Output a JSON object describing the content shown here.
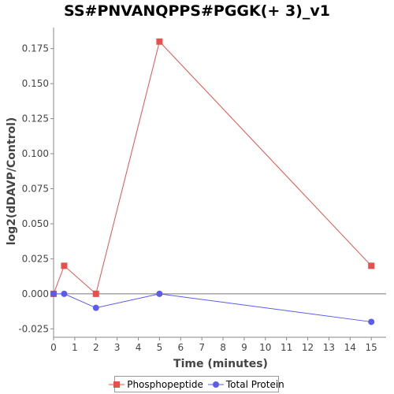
{
  "chart_data": {
    "type": "line",
    "title": "SS#PNVANQPPS#PGGK(+ 3)_v1",
    "xlabel": "Time (minutes)",
    "ylabel": "log2(dDAVP/Control)",
    "xlim": [
      0,
      15.7
    ],
    "ylim": [
      -0.031,
      0.19
    ],
    "x_ticks": [
      0,
      1,
      2,
      3,
      4,
      5,
      6,
      7,
      8,
      9,
      10,
      11,
      12,
      13,
      14,
      15
    ],
    "y_ticks": [
      -0.025,
      0.0,
      0.025,
      0.05,
      0.075,
      0.1,
      0.125,
      0.15,
      0.175
    ],
    "y_tick_labels": [
      "-0.025",
      "0.000",
      "0.025",
      "0.050",
      "0.075",
      "0.100",
      "0.125",
      "0.150",
      "0.175"
    ],
    "zero_line": true,
    "grid": false,
    "legend_position": "bottom",
    "series": [
      {
        "name": "Phosphopeptide",
        "color": "#e8504c",
        "marker": "square",
        "x": [
          0,
          0.5,
          2,
          5,
          15
        ],
        "y": [
          0.0,
          0.02,
          0.0,
          0.18,
          0.02
        ]
      },
      {
        "name": "Total Protein",
        "color": "#5b5bf0",
        "marker": "circle",
        "x": [
          0,
          0.5,
          2,
          5,
          15
        ],
        "y": [
          0.0,
          0.0,
          -0.01,
          0.0,
          -0.02
        ]
      }
    ]
  }
}
